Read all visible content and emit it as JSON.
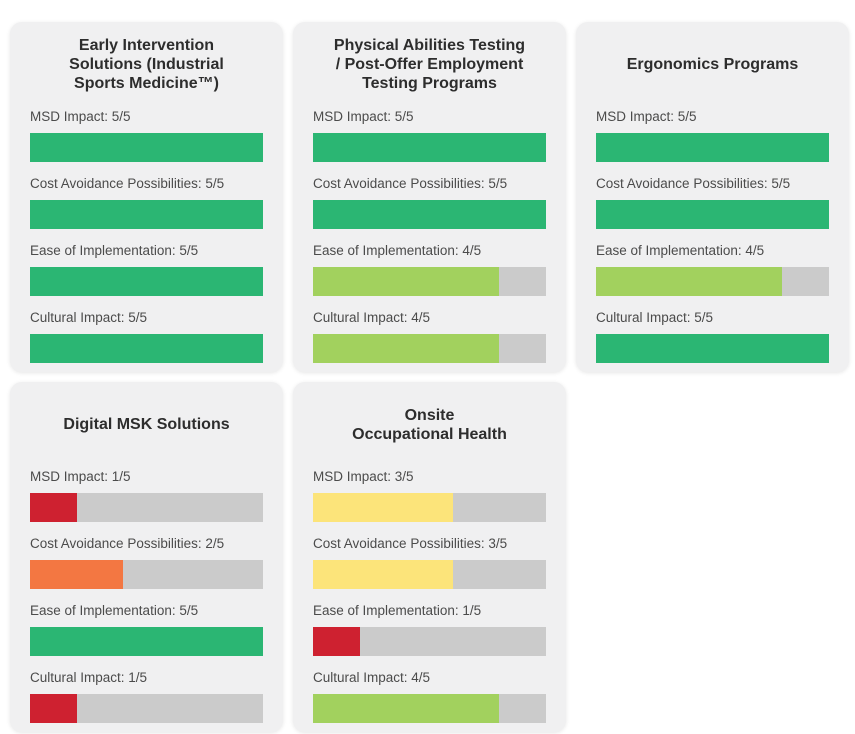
{
  "colors": {
    "score_5": "#2bb673",
    "score_4": "#a2d15e",
    "score_3": "#fce47a",
    "score_2": "#f37742",
    "score_1": "#ce2130",
    "bar_track": "#cbcbcb",
    "card_background": "#f0f0f1",
    "page_background": "#ffffff"
  },
  "chart_data": [
    {
      "type": "bar",
      "title": "Early Intervention\nSolutions (Industrial\nSports Medicine™)",
      "categories": [
        "MSD Impact",
        "Cost Avoidance Possibilities",
        "Ease of Implementation",
        "Cultural Impact"
      ],
      "values": [
        5,
        5,
        5,
        5
      ],
      "max": 5,
      "labels": [
        "MSD Impact: 5/5",
        "Cost Avoidance Possibilities: 5/5",
        "Ease of Implementation: 5/5",
        "Cultural Impact: 5/5"
      ],
      "bar_colors": [
        "#2bb673",
        "#2bb673",
        "#2bb673",
        "#2bb673"
      ]
    },
    {
      "type": "bar",
      "title": "Physical Abilities Testing\n/ Post-Offer Employment\nTesting Programs",
      "categories": [
        "MSD Impact",
        "Cost Avoidance Possibilities",
        "Ease of Implementation",
        "Cultural Impact"
      ],
      "values": [
        5,
        5,
        4,
        4
      ],
      "max": 5,
      "labels": [
        "MSD Impact: 5/5",
        "Cost Avoidance Possibilities: 5/5",
        "Ease of Implementation: 4/5",
        "Cultural Impact: 4/5"
      ],
      "bar_colors": [
        "#2bb673",
        "#2bb673",
        "#a2d15e",
        "#a2d15e"
      ]
    },
    {
      "type": "bar",
      "title": "Ergonomics Programs",
      "categories": [
        "MSD Impact",
        "Cost Avoidance Possibilities",
        "Ease of Implementation",
        "Cultural Impact"
      ],
      "values": [
        5,
        5,
        4,
        5
      ],
      "max": 5,
      "labels": [
        "MSD Impact: 5/5",
        "Cost Avoidance Possibilities: 5/5",
        "Ease of Implementation: 4/5",
        "Cultural Impact: 5/5"
      ],
      "bar_colors": [
        "#2bb673",
        "#2bb673",
        "#a2d15e",
        "#2bb673"
      ]
    },
    {
      "type": "bar",
      "title": "Digital MSK Solutions",
      "categories": [
        "MSD Impact",
        "Cost Avoidance Possibilities",
        "Ease of Implementation",
        "Cultural Impact"
      ],
      "values": [
        1,
        2,
        5,
        1
      ],
      "max": 5,
      "labels": [
        "MSD Impact: 1/5",
        "Cost Avoidance Possibilities: 2/5",
        "Ease of Implementation: 5/5",
        "Cultural Impact: 1/5"
      ],
      "bar_colors": [
        "#ce2130",
        "#f37742",
        "#2bb673",
        "#ce2130"
      ]
    },
    {
      "type": "bar",
      "title": "Onsite\nOccupational Health",
      "categories": [
        "MSD Impact",
        "Cost Avoidance Possibilities",
        "Ease of Implementation",
        "Cultural Impact"
      ],
      "values": [
        3,
        3,
        1,
        4
      ],
      "max": 5,
      "labels": [
        "MSD Impact: 3/5",
        "Cost Avoidance Possibilities: 3/5",
        "Ease of Implementation: 1/5",
        "Cultural Impact: 4/5"
      ],
      "bar_colors": [
        "#fce47a",
        "#fce47a",
        "#ce2130",
        "#a2d15e"
      ]
    }
  ]
}
